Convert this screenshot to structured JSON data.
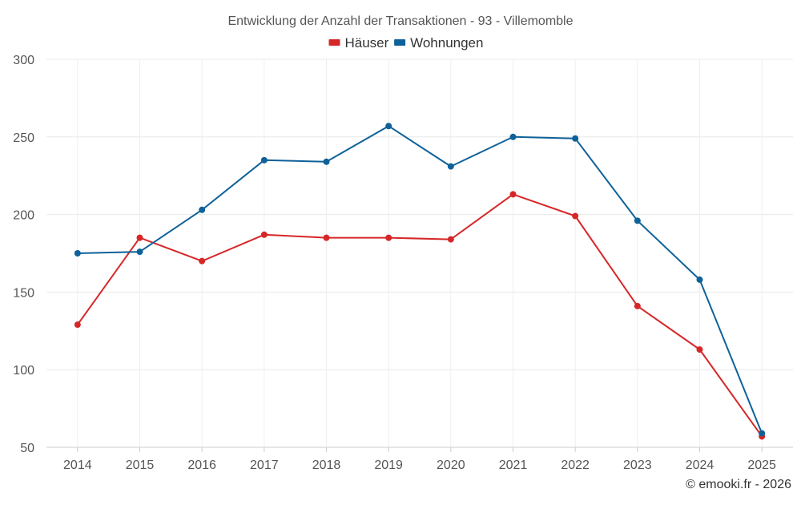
{
  "chart_data": {
    "type": "line",
    "title": "Entwicklung der Anzahl der Transaktionen - 93 - Villemomble",
    "xlabel": "",
    "ylabel": "",
    "categories": [
      "2014",
      "2015",
      "2016",
      "2017",
      "2018",
      "2019",
      "2020",
      "2021",
      "2022",
      "2023",
      "2024",
      "2025"
    ],
    "ylim": [
      50,
      300
    ],
    "yticks": [
      50,
      100,
      150,
      200,
      250,
      300
    ],
    "grid": true,
    "legend_position": "top-center",
    "series": [
      {
        "name": "Häuser",
        "color": "#d62728",
        "values": [
          129,
          185,
          170,
          187,
          185,
          185,
          184,
          213,
          199,
          141,
          113,
          57
        ]
      },
      {
        "name": "Wohnungen",
        "color": "#0e6199",
        "values": [
          175,
          176,
          203,
          235,
          234,
          257,
          231,
          250,
          249,
          196,
          158,
          59
        ]
      }
    ],
    "credit": "© emooki.fr - 2026"
  }
}
